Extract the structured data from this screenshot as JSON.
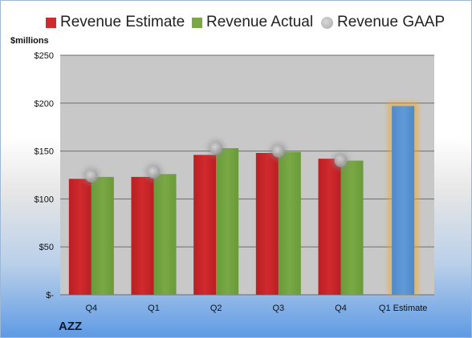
{
  "legend": {
    "estimate": "Revenue Estimate",
    "actual": "Revenue Actual",
    "gaap": "Revenue GAAP"
  },
  "unit_label": "$millions",
  "ticker": "AZZ",
  "colors": {
    "estimate": "#d12a2e",
    "actual": "#79a844",
    "gaap": "#a8a8a8",
    "forecast": "#5f9ad6",
    "forecast_glow": "#f5a623",
    "plot_bg": "#c8c8c8"
  },
  "chart_data": {
    "type": "bar",
    "categories": [
      "Q4",
      "Q1",
      "Q2",
      "Q3",
      "Q4",
      "Q1 Estimate"
    ],
    "series": [
      {
        "name": "Revenue Estimate",
        "values": [
          121,
          123,
          146,
          148,
          142,
          null
        ]
      },
      {
        "name": "Revenue Actual",
        "values": [
          123,
          126,
          153,
          149,
          140,
          197
        ]
      },
      {
        "name": "Revenue GAAP",
        "type": "scatter",
        "values": [
          124,
          128,
          153,
          150,
          140,
          null
        ]
      }
    ],
    "ylim": [
      0,
      250
    ],
    "yticks": [
      0,
      50,
      100,
      150,
      200,
      250
    ],
    "ytick_labels": [
      "$-",
      "$50",
      "$100",
      "$150",
      "$200",
      "$250"
    ],
    "ylabel": "$millions",
    "grid": true,
    "legend_position": "top"
  }
}
